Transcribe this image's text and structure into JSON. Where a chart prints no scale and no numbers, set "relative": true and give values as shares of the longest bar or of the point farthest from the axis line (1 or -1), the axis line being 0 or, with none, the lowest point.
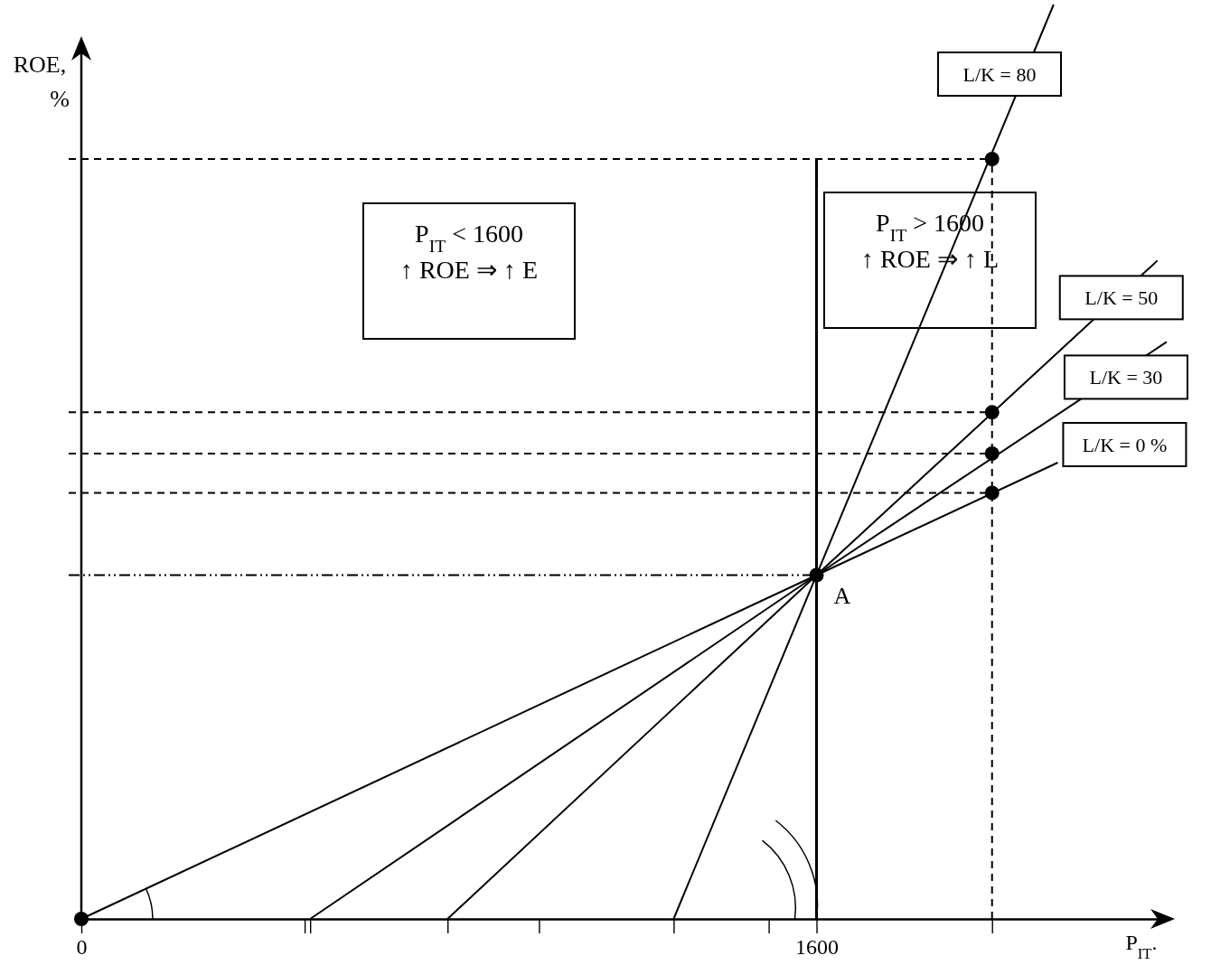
{
  "chart_data": {
    "type": "line",
    "relative": true,
    "xlabel": "P$_{IT}$.",
    "ylabel": "ROE,\n%",
    "xlim": [
      0,
      2370
    ],
    "xticks": [
      0,
      {
        "value": 486,
        "label": null
      },
      {
        "value": 498,
        "label": null
      },
      {
        "value": 797,
        "label": null
      },
      {
        "value": 996,
        "label": null
      },
      {
        "value": 1289,
        "label": null
      },
      {
        "value": 1496,
        "label": null
      },
      1600,
      {
        "value": 1982,
        "label": null
      }
    ],
    "series": [
      {
        "name": "L/K = 0 %",
        "color": "#000000",
        "x": [
          0,
          1600,
          2125
        ],
        "values": [
          0,
          0.376,
          0.499
        ]
      },
      {
        "name": "L/K = 30",
        "color": "#000000",
        "x": [
          498,
          1600,
          2362
        ],
        "values": [
          0,
          0.376,
          0.631
        ]
      },
      {
        "name": "L/K = 50",
        "color": "#000000",
        "x": [
          797,
          1600,
          2342
        ],
        "values": [
          0,
          0.376,
          0.72
        ]
      },
      {
        "name": "L/K = 80",
        "color": "#000000",
        "x": [
          1289,
          1600,
          2116
        ],
        "values": [
          0,
          0.376,
          1
        ]
      },
      {
        "type": "scatter",
        "color": "#000000",
        "marker": "circle",
        "x": [
          0,
          1600,
          1982,
          1982,
          1982,
          1982
        ],
        "values": [
          0,
          0.376,
          0.466,
          0.509,
          0.554,
          0.831
        ]
      }
    ],
    "ref_lines": [
      {
        "axis": "y",
        "value": 0.831,
        "line_style": "dashed"
      },
      {
        "axis": "y",
        "value": 0.554,
        "line_style": "dashed"
      },
      {
        "axis": "y",
        "value": 0.509,
        "line_style": "dashed"
      },
      {
        "axis": "y",
        "value": 0.466,
        "line_style": "dashed"
      },
      {
        "axis": "y",
        "value": 0.376,
        "line_style": "dashdot"
      },
      {
        "axis": "x",
        "value": 1600,
        "line_style": "solid"
      },
      {
        "axis": "x",
        "value": 1982,
        "line_style": "dashed"
      }
    ],
    "annotations": [
      "P$_{IT}$ < 1600\n↑ ROE ⇒ ↑ E",
      "P$_{IT}$ > 1600\n↑ ROE ⇒ ↑ L",
      "A"
    ],
    "legend": false,
    "marker": "none",
    "line_style": "solid"
  }
}
